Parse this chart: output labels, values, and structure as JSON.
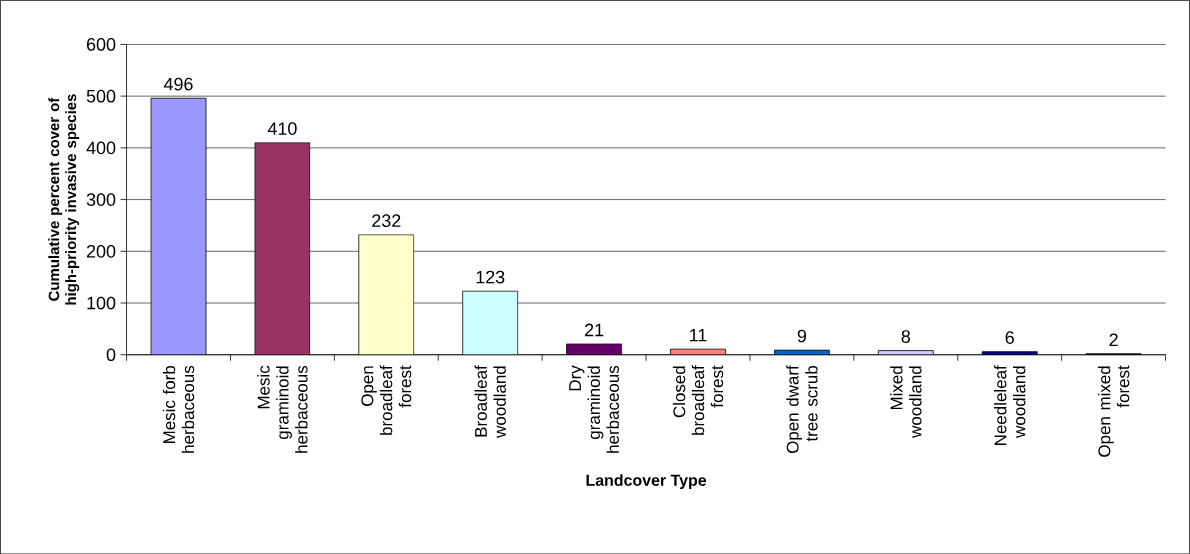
{
  "chart_data": {
    "type": "bar",
    "xlabel": "Landcover Type",
    "ylabel": "Cumulative percent cover of high-priority invasive species",
    "categories": [
      "Mesic forb herbaceous",
      "Mesic graminoid herbaceous",
      "Open broadleaf forest",
      "Broadleaf woodland",
      "Dry graminoid herbaceous",
      "Closed broadleaf forest",
      "Open dwarf tree scrub",
      "Mixed woodland",
      "Needleleaf woodland",
      "Open mixed forest"
    ],
    "values": [
      496,
      410,
      232,
      123,
      21,
      11,
      9,
      8,
      6,
      2
    ],
    "colors": [
      "#9999ff",
      "#993366",
      "#ffffcc",
      "#ccffff",
      "#660066",
      "#ff8080",
      "#0066cc",
      "#ccccff",
      "#000080",
      "#000000"
    ],
    "ylim": [
      0,
      600
    ],
    "yticks": [
      0,
      100,
      200,
      300,
      400,
      500,
      600
    ],
    "grid": "y",
    "data_labels": true
  }
}
